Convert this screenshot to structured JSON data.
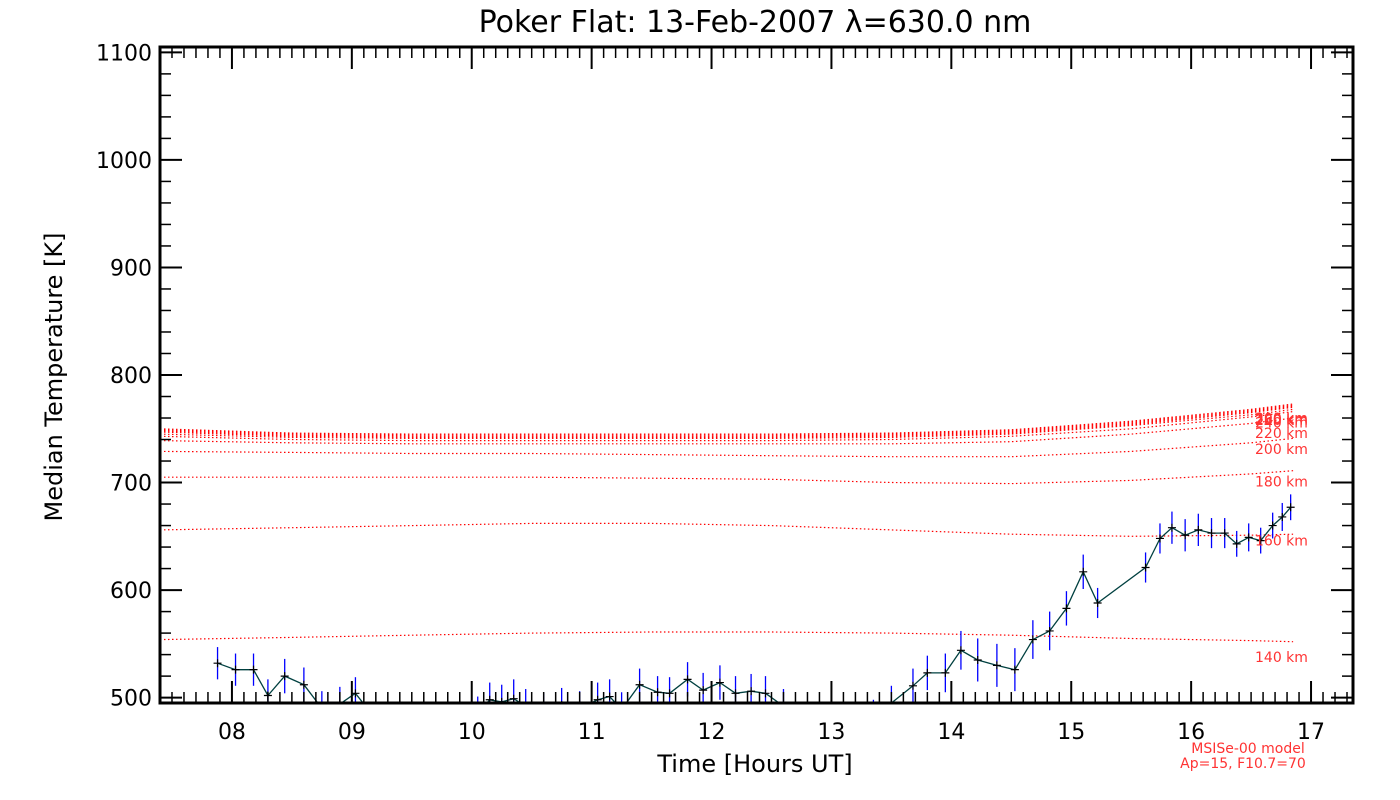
{
  "chart_data": {
    "type": "line",
    "title": "Poker Flat: 13-Feb-2007 λ=630.0 nm",
    "xlabel": "Time [Hours UT]",
    "ylabel": "Median Temperature [K]",
    "xlim": [
      7.4,
      17.35
    ],
    "ylim": [
      495,
      1105
    ],
    "x_ticks": [
      8,
      9,
      10,
      11,
      12,
      13,
      14,
      15,
      16,
      17
    ],
    "x_tick_labels": [
      "08",
      "09",
      "10",
      "11",
      "12",
      "13",
      "14",
      "15",
      "16",
      "17"
    ],
    "y_ticks": [
      500,
      600,
      700,
      800,
      900,
      1000,
      1100
    ],
    "y_tick_labels": [
      "500",
      "600",
      "700",
      "800",
      "900",
      "1000",
      "1100"
    ],
    "colors": {
      "data_line": "#004040",
      "error_bars": "#0000ff",
      "model": "#ff0000",
      "axes": "#000000"
    },
    "series": [
      {
        "name": "Median Temperature",
        "x": [
          7.88,
          8.03,
          8.18,
          8.3,
          8.44,
          8.6,
          8.75,
          8.9,
          9.03,
          9.2,
          9.35,
          9.5,
          9.65,
          9.8,
          9.95,
          10.05,
          10.15,
          10.25,
          10.35,
          10.45,
          10.6,
          10.75,
          10.9,
          11.05,
          11.15,
          11.25,
          11.4,
          11.55,
          11.65,
          11.8,
          11.93,
          12.07,
          12.2,
          12.33,
          12.45,
          12.6,
          12.75,
          12.9,
          13.05,
          13.2,
          13.35,
          13.5,
          13.68,
          13.8,
          13.95,
          14.08,
          14.22,
          14.38,
          14.53,
          14.68,
          14.82,
          14.96,
          15.1,
          15.22,
          15.62,
          15.74,
          15.84,
          15.95,
          16.06,
          16.17,
          16.28,
          16.38,
          16.48,
          16.58,
          16.68,
          16.76,
          16.83
        ],
        "y": [
          532,
          526,
          526,
          502,
          520,
          512,
          490,
          494,
          504,
          480,
          478,
          476,
          474,
          480,
          476,
          485,
          498,
          496,
          499,
          492,
          488,
          493,
          490,
          498,
          501,
          489,
          512,
          505,
          504,
          517,
          507,
          514,
          504,
          506,
          504,
          492,
          480,
          472,
          478,
          470,
          482,
          495,
          511,
          523,
          523,
          544,
          535,
          530,
          526,
          554,
          562,
          583,
          617,
          588,
          621,
          648,
          658,
          651,
          656,
          653,
          653,
          643,
          649,
          646,
          660,
          668,
          677
        ],
        "y_err": [
          15,
          15,
          15,
          15,
          16,
          16,
          16,
          16,
          15,
          16,
          16,
          16,
          16,
          16,
          16,
          16,
          16,
          16,
          18,
          16,
          16,
          16,
          16,
          16,
          16,
          16,
          15,
          15,
          15,
          16,
          16,
          16,
          16,
          16,
          16,
          16,
          16,
          16,
          16,
          16,
          16,
          16,
          16,
          16,
          18,
          18,
          20,
          20,
          20,
          18,
          18,
          16,
          16,
          14,
          14,
          14,
          15,
          15,
          15,
          14,
          14,
          12,
          13,
          12,
          12,
          13,
          12
        ]
      }
    ],
    "model": {
      "label_line1": "MSISe-00 model",
      "label_line2": "Ap=15, F10.7=70",
      "x": [
        7.4,
        8.5,
        9.5,
        10.5,
        11.5,
        12.5,
        13.5,
        14.5,
        15.5,
        16.5,
        16.85
      ],
      "curves": [
        {
          "name": "140 km",
          "values": [
            554,
            556,
            558,
            560,
            561,
            561,
            560,
            558,
            555,
            553,
            552
          ]
        },
        {
          "name": "160 km",
          "values": [
            656,
            658,
            660,
            662,
            662,
            660,
            656,
            652,
            650,
            651,
            652
          ]
        },
        {
          "name": "180 km",
          "values": [
            705,
            705,
            705,
            705,
            704,
            703,
            700,
            699,
            702,
            708,
            711
          ]
        },
        {
          "name": "200 km",
          "values": [
            729,
            728,
            727,
            727,
            726,
            725,
            724,
            724,
            729,
            737,
            741
          ]
        },
        {
          "name": "220 km",
          "values": [
            739,
            737,
            736,
            736,
            736,
            736,
            736,
            738,
            745,
            755,
            760
          ]
        },
        {
          "name": "240 km",
          "values": [
            743,
            740,
            739,
            739,
            739,
            739,
            740,
            743,
            750,
            761,
            766
          ]
        },
        {
          "name": "260 km",
          "values": [
            745,
            742,
            741,
            741,
            741,
            741,
            742,
            745,
            753,
            763,
            768
          ]
        },
        {
          "name": "280 km",
          "values": [
            747,
            743,
            742,
            742,
            742,
            742,
            743,
            746,
            754,
            765,
            770
          ]
        },
        {
          "name": "300 km",
          "values": [
            748,
            744,
            743,
            743,
            743,
            743,
            744,
            747,
            755,
            766,
            771
          ]
        },
        {
          "name": "320 km",
          "values": [
            749,
            745,
            744,
            744,
            744,
            744,
            745,
            748,
            756,
            767,
            772
          ]
        },
        {
          "name": "340 km",
          "values": [
            750,
            746,
            745,
            745,
            745,
            745,
            746,
            749,
            757,
            768,
            773
          ]
        }
      ],
      "labels": [
        {
          "text": "140 km",
          "value": 538
        },
        {
          "text": "160 km",
          "value": 646
        },
        {
          "text": "180 km",
          "value": 701
        },
        {
          "text": "200 km",
          "value": 731
        },
        {
          "text": "220 km",
          "value": 746
        },
        {
          "text": "240 km",
          "value": 756
        },
        {
          "text": "260 km",
          "value": 758
        },
        {
          "text": "280 km",
          "value": 759
        },
        {
          "text": "300 km",
          "value": 760
        }
      ]
    }
  }
}
